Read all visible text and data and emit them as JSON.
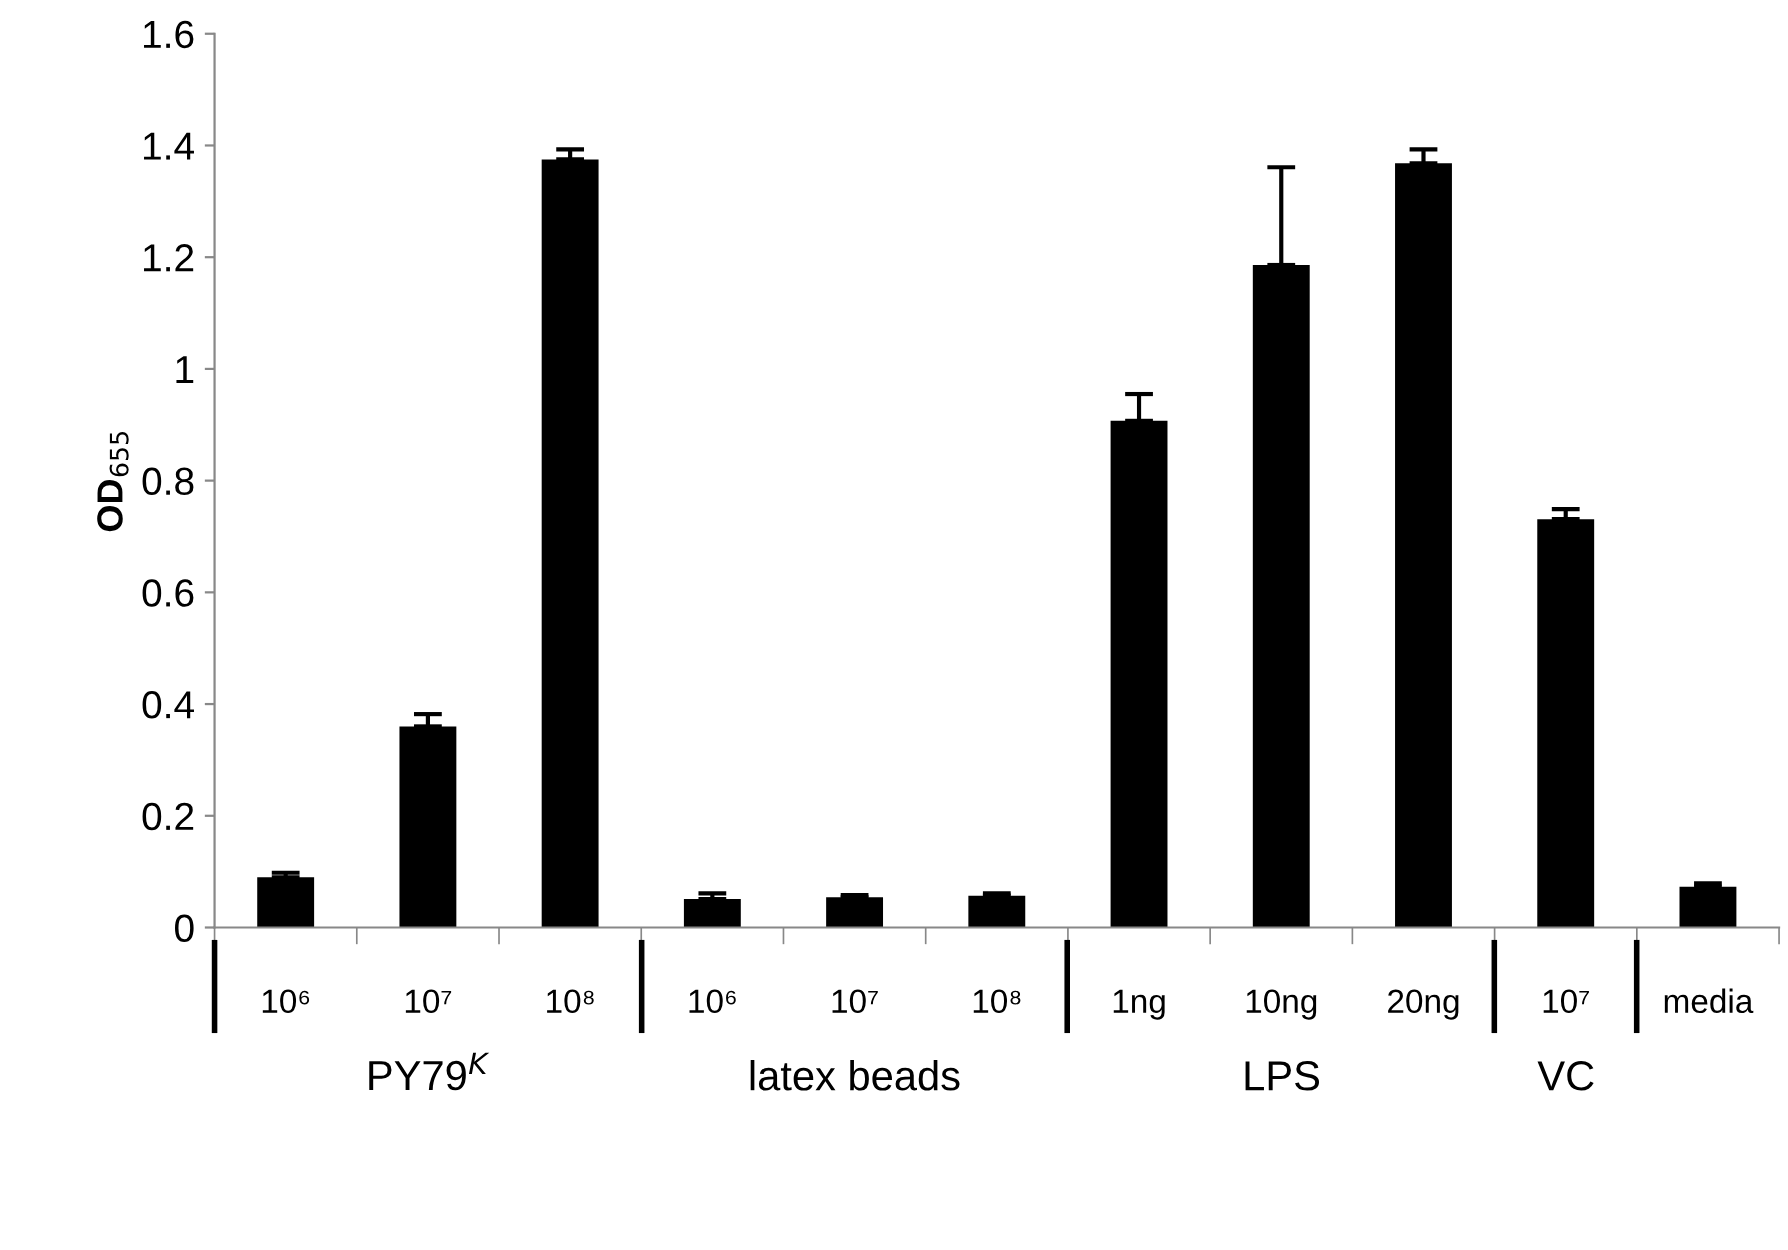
{
  "chart_data": {
    "type": "bar",
    "ylabel": "OD$_{655}$",
    "categories": [
      "10⁶",
      "10⁷",
      "10⁸",
      "10⁶",
      "10⁷",
      "10⁸",
      "1ng",
      "10ng",
      "20ng",
      "10⁷",
      "media"
    ],
    "values": [
      0.09,
      0.36,
      1.375,
      0.051,
      0.054,
      0.057,
      0.907,
      1.186,
      1.368,
      0.731,
      0.073
    ],
    "errors": [
      [
        0.09,
        0.098
      ],
      [
        0.36,
        0.382
      ],
      [
        1.375,
        1.393
      ],
      [
        0.051,
        0.061
      ],
      [
        0.054,
        0.058
      ],
      [
        0.057,
        0.061
      ],
      [
        0.907,
        0.955
      ],
      [
        1.186,
        1.361
      ],
      [
        1.368,
        1.393
      ],
      [
        0.731,
        0.749
      ],
      [
        0.073,
        0.079
      ]
    ],
    "color": "#000000",
    "ylim": [
      0,
      1.6
    ],
    "yticks": [
      0,
      0.2,
      0.4,
      0.6,
      0.8,
      1,
      1.2,
      1.4,
      1.6
    ],
    "annotations": [
      "PY79$^{K}$",
      "latex beads",
      "LPS",
      "VC"
    ],
    "grid": false,
    "legend": false
  }
}
